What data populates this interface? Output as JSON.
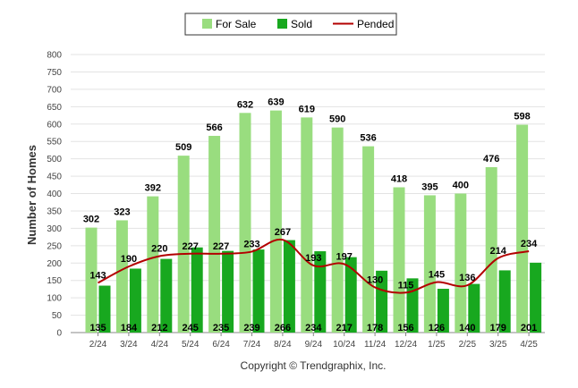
{
  "chart_data": {
    "type": "bar",
    "categories": [
      "2/24",
      "3/24",
      "4/24",
      "5/24",
      "6/24",
      "7/24",
      "8/24",
      "9/24",
      "10/24",
      "11/24",
      "12/24",
      "1/25",
      "2/25",
      "3/25",
      "4/25"
    ],
    "series": [
      {
        "name": "For Sale",
        "type": "bar",
        "color": "#99dd7f",
        "values": [
          302,
          323,
          392,
          509,
          566,
          632,
          639,
          619,
          590,
          536,
          418,
          395,
          400,
          476,
          598
        ]
      },
      {
        "name": "Sold",
        "type": "bar",
        "color": "#18a81f",
        "values": [
          135,
          184,
          212,
          245,
          235,
          239,
          266,
          234,
          217,
          178,
          156,
          126,
          140,
          179,
          201
        ]
      },
      {
        "name": "Pended",
        "type": "line",
        "color": "#b30000",
        "values": [
          143,
          190,
          220,
          227,
          227,
          233,
          267,
          193,
          197,
          130,
          115,
          145,
          136,
          214,
          234
        ]
      }
    ],
    "ylabel": "Number of Homes",
    "xlabel": "",
    "ylim": [
      0,
      800
    ],
    "yticks": [
      0,
      50,
      100,
      150,
      200,
      250,
      300,
      350,
      400,
      450,
      500,
      550,
      600,
      650,
      700,
      750,
      800
    ],
    "grid": true,
    "legend_position": "top-center"
  },
  "footer": {
    "copyright": "Copyright © Trendgraphix, Inc."
  }
}
